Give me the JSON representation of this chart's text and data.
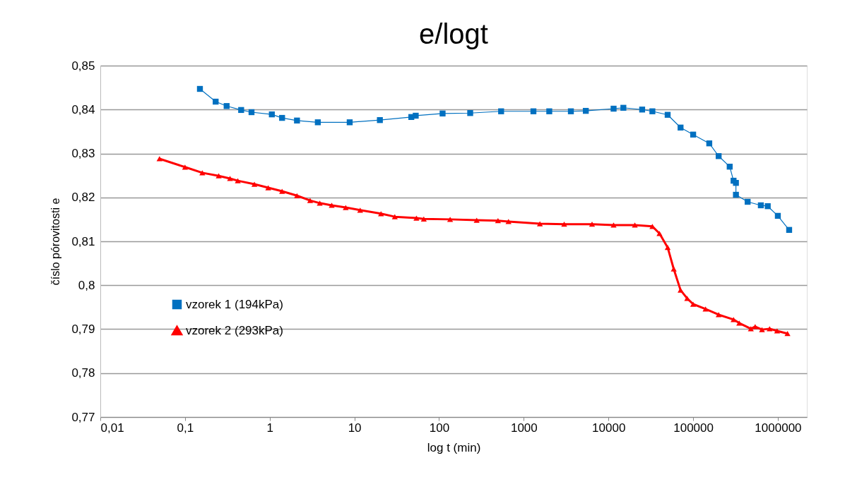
{
  "chart_data": {
    "type": "line",
    "title": "e/logt",
    "xlabel": "log t (min)",
    "ylabel": "číslo pórovitosti e",
    "log": "x",
    "grid": "y",
    "legend": "bottom left",
    "xlim": [
      0.01,
      2200000
    ],
    "xticks": [
      {
        "value": 0.01,
        "label": "0,01"
      },
      {
        "value": 0.1,
        "label": "0,1"
      },
      {
        "value": 1,
        "label": "1"
      },
      {
        "value": 10,
        "label": "10"
      },
      {
        "value": 100,
        "label": "100"
      },
      {
        "value": 1000,
        "label": "1000"
      },
      {
        "value": 10000,
        "label": "10000"
      },
      {
        "value": 100000,
        "label": "100000"
      },
      {
        "value": 1000000,
        "label": "1000000"
      }
    ],
    "ylim": [
      0.77,
      0.85
    ],
    "yticks": [
      {
        "value": 0.77,
        "label": "0,77"
      },
      {
        "value": 0.78,
        "label": "0,78"
      },
      {
        "value": 0.79,
        "label": "0,79"
      },
      {
        "value": 0.8,
        "label": "0,8"
      },
      {
        "value": 0.81,
        "label": "0,81"
      },
      {
        "value": 0.82,
        "label": "0,82"
      },
      {
        "value": 0.83,
        "label": "0,83"
      },
      {
        "value": 0.84,
        "label": "0,84"
      },
      {
        "value": 0.85,
        "label": "0,85"
      }
    ],
    "series": [
      {
        "name": "vzorek 1 (194kPa)",
        "color": "#0070c0",
        "marker": "square",
        "x": [
          0.15,
          0.23,
          0.31,
          0.46,
          0.61,
          1.06,
          1.4,
          2.1,
          3.7,
          8.8,
          20,
          47,
          53,
          110,
          233,
          540,
          1300,
          2000,
          3600,
          5400,
          11500,
          15000,
          25000,
          33000,
          50000,
          71000,
          100000,
          155000,
          200000,
          270000,
          300000,
          320000,
          320000,
          440000,
          630000,
          760000,
          1000000,
          1360000
        ],
        "values": [
          0.8447,
          0.8418,
          0.8408,
          0.8399,
          0.8394,
          0.8389,
          0.8381,
          0.8375,
          0.8371,
          0.8371,
          0.8376,
          0.8383,
          0.8386,
          0.8391,
          0.8392,
          0.8396,
          0.8396,
          0.8396,
          0.8396,
          0.8397,
          0.8402,
          0.8404,
          0.84,
          0.8396,
          0.8388,
          0.8359,
          0.8343,
          0.8323,
          0.8294,
          0.827,
          0.8238,
          0.8233,
          0.8206,
          0.819,
          0.8182,
          0.818,
          0.8158,
          0.8126
        ]
      },
      {
        "name": "vzorek 2 (293kPa)",
        "color": "#ff0000",
        "marker": "triangle",
        "x": [
          0.05,
          0.1,
          0.16,
          0.25,
          0.34,
          0.42,
          0.66,
          0.96,
          1.4,
          2.1,
          3.0,
          3.9,
          5.4,
          7.9,
          11.7,
          20.6,
          30,
          54,
          66,
          135,
          278,
          496,
          660,
          1550,
          3000,
          6400,
          11500,
          20500,
          33000,
          40000,
          50000,
          59000,
          71000,
          85000,
          100000,
          140000,
          200000,
          300000,
          350000,
          480000,
          540000,
          650000,
          800000,
          980000,
          1300000
        ],
        "values": [
          0.8288,
          0.8269,
          0.8256,
          0.8249,
          0.8243,
          0.8238,
          0.823,
          0.8222,
          0.8214,
          0.8204,
          0.8193,
          0.8187,
          0.8182,
          0.8177,
          0.8171,
          0.8163,
          0.8156,
          0.8153,
          0.8151,
          0.815,
          0.8148,
          0.8147,
          0.8145,
          0.814,
          0.8139,
          0.8139,
          0.8137,
          0.8137,
          0.8134,
          0.8118,
          0.8086,
          0.8037,
          0.7989,
          0.797,
          0.7957,
          0.7946,
          0.7933,
          0.7922,
          0.7914,
          0.7901,
          0.7906,
          0.7899,
          0.7901,
          0.7896,
          0.789
        ]
      }
    ]
  }
}
